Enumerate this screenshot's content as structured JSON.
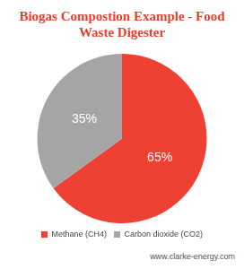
{
  "chart_data": {
    "type": "pie",
    "title": "Biogas Compostion Example - Food Waste Digester",
    "categories": [
      "Methane (CH4)",
      "Carbon dioxide (CO2)"
    ],
    "values": [
      65,
      35
    ],
    "value_labels": [
      "65%",
      "35%"
    ],
    "colors": [
      "#ef4034",
      "#a5a5a5"
    ],
    "data_labels": true,
    "legend": "bottom",
    "annotations": [
      "www.clarke-energy.com"
    ]
  }
}
